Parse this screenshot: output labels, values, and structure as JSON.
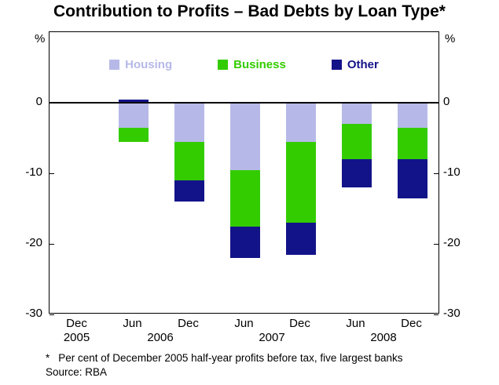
{
  "title": "Contribution to Profits – Bad Debts by Loan Type*",
  "footnote": {
    "marker": "*",
    "text": "Per cent of December 2005 half-year profits before tax, five largest banks"
  },
  "source": "Source: RBA",
  "y_axis": {
    "unit": "%",
    "ticks": [
      {
        "label": "0",
        "value": 0
      },
      {
        "label": "-10",
        "value": -10
      },
      {
        "label": "-20",
        "value": -20
      },
      {
        "label": "-30",
        "value": -30
      }
    ]
  },
  "chart_data": {
    "type": "bar",
    "stacked": true,
    "title": "Contribution to Profits – Bad Debts by Loan Type*",
    "xlabel": "",
    "ylabel": "%",
    "ylim": [
      -30,
      10
    ],
    "grid": false,
    "legend_position": "top-center",
    "categories": [
      "Dec 2005",
      "Jun 2006",
      "Dec 2006",
      "Jun 2007",
      "Dec 2007",
      "Jun 2008",
      "Dec 2008"
    ],
    "x_tick_labels": [
      "Dec",
      "Jun",
      "Dec",
      "Jun",
      "Dec",
      "Jun",
      "Dec"
    ],
    "x_year_labels": [
      {
        "label": "2005",
        "periods": [
          0
        ]
      },
      {
        "label": "2006",
        "periods": [
          1,
          2
        ]
      },
      {
        "label": "2007",
        "periods": [
          3,
          4
        ]
      },
      {
        "label": "2008",
        "periods": [
          5,
          6
        ]
      }
    ],
    "series": [
      {
        "name": "Housing",
        "color": "#b6b9e7",
        "values": [
          0,
          -3.5,
          -5.5,
          -9.5,
          -5.5,
          -3,
          -3.5
        ]
      },
      {
        "name": "Business",
        "color": "#33cc00",
        "values": [
          0,
          -2,
          -5.5,
          -8,
          -11.5,
          -5,
          -4.5
        ]
      },
      {
        "name": "Other",
        "color": "#131389",
        "values": [
          0,
          0.5,
          -3,
          -4.5,
          -4.5,
          -4,
          -5.5
        ]
      }
    ]
  }
}
